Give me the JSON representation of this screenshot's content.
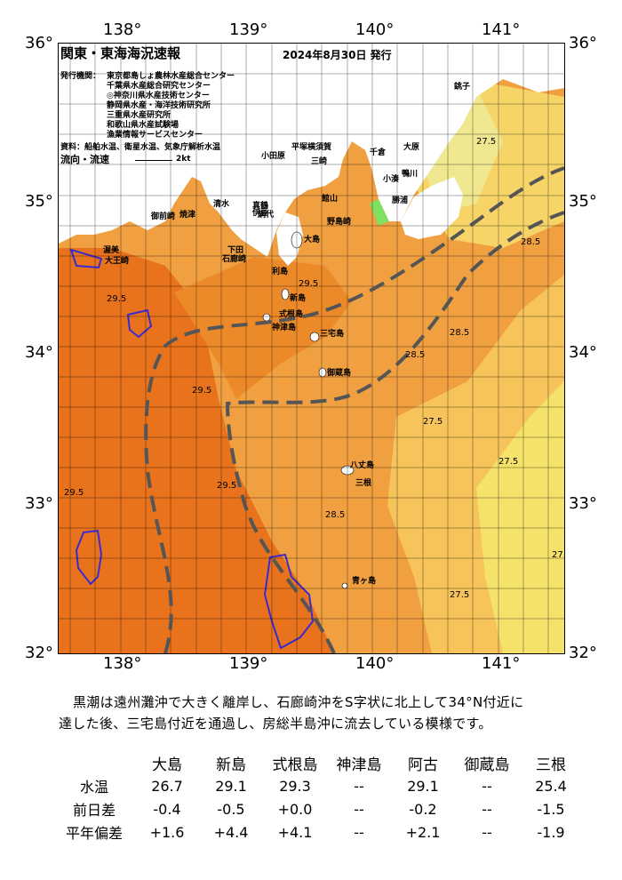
{
  "header": {
    "title": "関東・東海海況速報",
    "issue_label": "2024年8月30日 発行"
  },
  "issuers": {
    "label": "発行機関：",
    "names": [
      "東京都島しょ農林水産総合センター",
      "千葉県水産総合研究センター",
      "◎神奈川県水産技術センター",
      "静岡県水産・海洋技術研究所",
      "三重県水産研究所",
      "和歌山県水産試験場",
      "漁業情報サービスセンター"
    ],
    "sources": "資料：船舶水温、衛星水温、気象庁解析水温",
    "flow_label": "流向・流速",
    "flow_scale": "2kt"
  },
  "axes": {
    "lon_ticks": [
      "138°",
      "139°",
      "140°",
      "141°"
    ],
    "lat_ticks": [
      "36°",
      "35°",
      "34°",
      "33°",
      "32°"
    ]
  },
  "places": {
    "choshi": "銚子",
    "katsuura": "勝浦",
    "nojima": "野島崎",
    "onjuku": "大原",
    "oshima": "大島",
    "toshima": "利島",
    "niijima": "新島",
    "shikinejima": "式根島",
    "kozushima": "神津島",
    "miyakejima": "三宅島",
    "mikurajima": "御蔵島",
    "hachijojima": "八丈島",
    "aogashima": "青ヶ島",
    "irozaki": "石廊崎",
    "omaezaki": "御前崎",
    "ajiro": "網代",
    "manazuru": "真鶴",
    "odawara": "小田原",
    "hiratsuka": "平塚",
    "yokosuka": "横須賀",
    "miura": "三崎",
    "tateyama": "館山",
    "chikura": "千倉",
    "kominato": "小湊",
    "kamogawa": "鴨川",
    "ito": "伊豆",
    "shimoda": "下田",
    "shizuoka": "清水",
    "yaizu": "焼津",
    "atsumi": "渥美",
    "daio": "大王崎",
    "mikura": "三根"
  },
  "summary": [
    "黒潮は遠州灘沖で大きく離岸し、石廊崎沖をS字状に北上して34°N付近に",
    "達した後、三宅島付近を通過し、房総半島沖に流去している模様です。"
  ],
  "table": {
    "columns": [
      "大島",
      "新島",
      "式根島",
      "神津島",
      "阿古",
      "御蔵島",
      "三根"
    ],
    "rows": [
      {
        "label": "水温",
        "values": [
          "26.7",
          "29.1",
          "29.3",
          "--",
          "29.1",
          "--",
          "25.4"
        ]
      },
      {
        "label": "前日差",
        "values": [
          "-0.4",
          "-0.5",
          "+0.0",
          "--",
          "-0.2",
          "--",
          "-1.5"
        ]
      },
      {
        "label": "平年偏差",
        "values": [
          "+1.6",
          "+4.4",
          "+4.1",
          "--",
          "+2.1",
          "--",
          "-1.9"
        ]
      }
    ]
  },
  "colors": {
    "warm_orange": "#e8731c",
    "orange": "#f2a03c",
    "light_orange": "#f6c45a",
    "yellow": "#f4e26a",
    "land": "#ffffff",
    "kuroshio_axis": "#555555",
    "contour_blue": "#3a2bd0"
  }
}
